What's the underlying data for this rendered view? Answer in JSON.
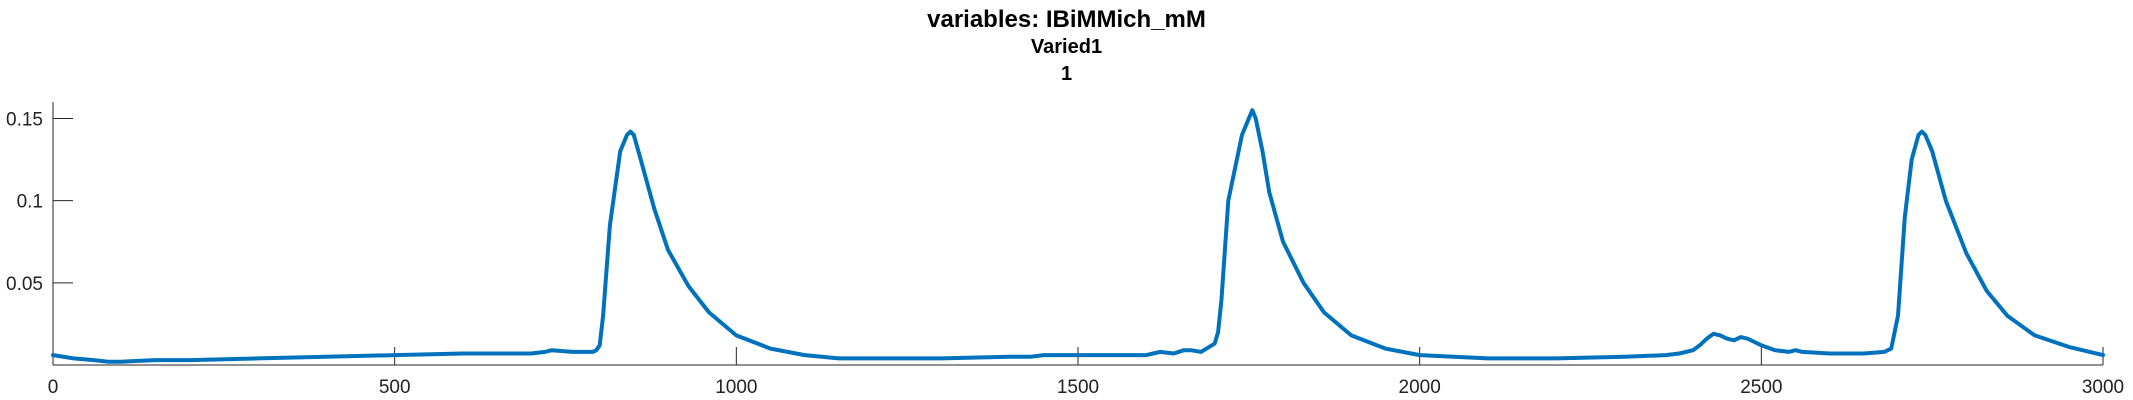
{
  "chart_data": {
    "type": "line",
    "title": "variables: IBiMMich_mM",
    "subtitle": "Varied1",
    "subtitle2": "1",
    "xlabel": "",
    "ylabel": "",
    "xlim": [
      0,
      3000
    ],
    "ylim": [
      0,
      0.16
    ],
    "xticks": [
      0,
      500,
      1000,
      1500,
      2000,
      2500,
      3000
    ],
    "xtick_labels": [
      "0",
      "500",
      "1000",
      "1500",
      "2000",
      "2500",
      "3000"
    ],
    "yticks": [
      0.05,
      0.1,
      0.15
    ],
    "ytick_labels": [
      "0.05",
      "0.1",
      "0.15"
    ],
    "grid": false,
    "line_color": "#0072bd",
    "series": [
      {
        "x": [
          0,
          30,
          60,
          80,
          100,
          150,
          200,
          300,
          400,
          500,
          600,
          700,
          720,
          730,
          760,
          790,
          795,
          800,
          805,
          815,
          830,
          840,
          845,
          850,
          860,
          880,
          900,
          930,
          960,
          1000,
          1050,
          1100,
          1150,
          1200,
          1300,
          1400,
          1430,
          1450,
          1500,
          1550,
          1600,
          1610,
          1620,
          1640,
          1655,
          1665,
          1680,
          1700,
          1705,
          1710,
          1720,
          1740,
          1755,
          1760,
          1770,
          1780,
          1800,
          1830,
          1860,
          1900,
          1950,
          2000,
          2050,
          2100,
          2200,
          2300,
          2360,
          2380,
          2400,
          2410,
          2420,
          2430,
          2440,
          2450,
          2460,
          2470,
          2480,
          2490,
          2500,
          2520,
          2540,
          2550,
          2560,
          2600,
          2650,
          2680,
          2690,
          2700,
          2710,
          2720,
          2730,
          2735,
          2740,
          2750,
          2770,
          2800,
          2830,
          2860,
          2900,
          2950,
          3000
        ],
        "y": [
          0.006,
          0.004,
          0.003,
          0.002,
          0.002,
          0.003,
          0.003,
          0.004,
          0.005,
          0.006,
          0.007,
          0.007,
          0.008,
          0.009,
          0.008,
          0.008,
          0.009,
          0.012,
          0.03,
          0.085,
          0.13,
          0.14,
          0.142,
          0.14,
          0.125,
          0.095,
          0.07,
          0.048,
          0.032,
          0.018,
          0.01,
          0.006,
          0.004,
          0.004,
          0.004,
          0.005,
          0.005,
          0.006,
          0.006,
          0.006,
          0.006,
          0.007,
          0.008,
          0.007,
          0.009,
          0.009,
          0.008,
          0.013,
          0.02,
          0.04,
          0.1,
          0.14,
          0.155,
          0.15,
          0.13,
          0.105,
          0.075,
          0.05,
          0.032,
          0.018,
          0.01,
          0.006,
          0.005,
          0.004,
          0.004,
          0.005,
          0.006,
          0.007,
          0.009,
          0.012,
          0.016,
          0.019,
          0.018,
          0.016,
          0.015,
          0.017,
          0.016,
          0.014,
          0.012,
          0.009,
          0.008,
          0.009,
          0.008,
          0.007,
          0.007,
          0.008,
          0.01,
          0.03,
          0.09,
          0.125,
          0.14,
          0.142,
          0.14,
          0.13,
          0.1,
          0.068,
          0.045,
          0.03,
          0.018,
          0.011,
          0.006
        ]
      }
    ]
  }
}
